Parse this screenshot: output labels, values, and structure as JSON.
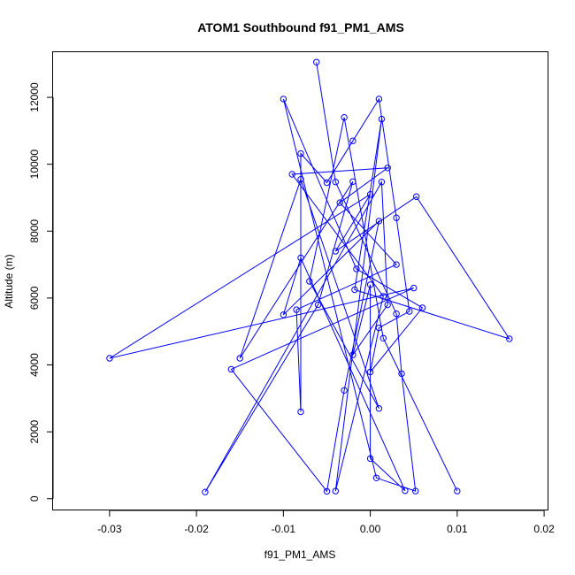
{
  "chart_data": {
    "type": "line",
    "title": "ATOM1 Southbound f91_PM1_AMS",
    "xlabel": "f91_PM1_AMS",
    "ylabel": "Altitude (m)",
    "xlim": [
      -0.0365,
      0.0205
    ],
    "ylim": [
      -350,
      13350
    ],
    "xticks": [
      -0.03,
      -0.02,
      -0.01,
      0.0,
      0.01,
      0.02
    ],
    "xtick_labels": [
      "-0.03",
      "-0.02",
      "-0.01",
      "0.00",
      "0.01",
      "0.02"
    ],
    "yticks": [
      0,
      2000,
      4000,
      6000,
      8000,
      10000,
      12000
    ],
    "ytick_labels": [
      "0",
      "2000",
      "4000",
      "6000",
      "8000",
      "10000",
      "12000"
    ],
    "grid": false,
    "color": "#0000ff",
    "series": [
      {
        "points": [
          [
            -0.0062,
            13050
          ],
          [
            -0.004,
            9470
          ],
          [
            0.003,
            5530
          ],
          [
            0.0036,
            3740
          ],
          [
            0.0052,
            230
          ],
          [
            0.0007,
            620
          ],
          [
            -0.01,
            11950
          ],
          [
            -0.0016,
            6870
          ],
          [
            0.006,
            5710
          ],
          [
            0.0,
            3790
          ],
          [
            0.001,
            5110
          ],
          [
            0.0045,
            5600
          ],
          [
            0.003,
            8400
          ],
          [
            0.001,
            11950
          ],
          [
            -0.002,
            10700
          ],
          [
            -0.005,
            9450
          ],
          [
            -0.008,
            10320
          ],
          [
            -0.008,
            2600
          ],
          [
            -0.0085,
            5650
          ],
          [
            0.003,
            7000
          ],
          [
            -0.0035,
            8850
          ],
          [
            0.002,
            9890
          ],
          [
            -0.009,
            9700
          ],
          [
            0.0015,
            6050
          ],
          [
            -0.004,
            230
          ],
          [
            0.0013,
            11350
          ],
          [
            -0.0018,
            6250
          ],
          [
            0.016,
            4780
          ],
          [
            0.0053,
            9030
          ],
          [
            -0.004,
            7400
          ],
          [
            0.0,
            9100
          ],
          [
            -0.03,
            4200
          ],
          [
            0.005,
            6300
          ],
          [
            -0.016,
            3870
          ],
          [
            -0.005,
            220
          ],
          [
            -0.003,
            3240
          ],
          [
            0.001,
            8300
          ],
          [
            -0.01,
            5500
          ],
          [
            -0.008,
            7200
          ],
          [
            0.004,
            240
          ],
          [
            0.0,
            1200
          ],
          [
            0.0,
            6400
          ],
          [
            -0.002,
            4300
          ],
          [
            0.002,
            5800
          ],
          [
            0.0013,
            9470
          ],
          [
            -0.019,
            200
          ],
          [
            -0.006,
            5800
          ],
          [
            -0.002,
            9480
          ],
          [
            -0.015,
            4200
          ],
          [
            -0.008,
            9550
          ],
          [
            0.001,
            2700
          ],
          [
            -0.007,
            6500
          ],
          [
            -0.003,
            11400
          ],
          [
            0.0015,
            4800
          ],
          [
            0.01,
            230
          ]
        ]
      }
    ]
  }
}
